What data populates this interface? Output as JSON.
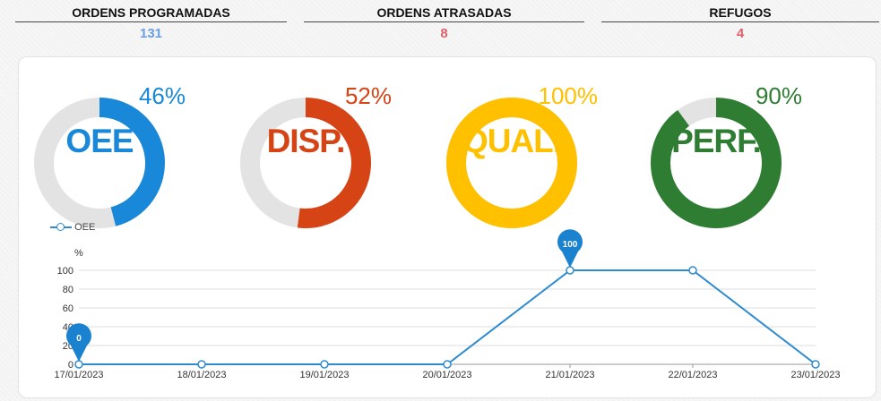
{
  "kpis": [
    {
      "label": "ORDENS PROGRAMADAS",
      "value": "131",
      "color": "#6a9fe0"
    },
    {
      "label": "ORDENS ATRASADAS",
      "value": "8",
      "color": "#e0606a"
    },
    {
      "label": "REFUGOS",
      "value": "4",
      "color": "#e0606a"
    }
  ],
  "gauges": [
    {
      "center": "OEE",
      "percent": "46%",
      "value": 46,
      "color": "#1a88d8"
    },
    {
      "center": "DISP.",
      "percent": "52%",
      "value": 52,
      "color": "#d64416"
    },
    {
      "center": "QUAL.",
      "percent": "100%",
      "value": 100,
      "color": "#ffc000"
    },
    {
      "center": "PERF.",
      "percent": "90%",
      "value": 90,
      "color": "#2e7d32"
    }
  ],
  "chart_data": {
    "type": "line",
    "title": "",
    "xlabel": "",
    "ylabel": "%",
    "ylim": [
      0,
      100
    ],
    "yticks": [
      0,
      20,
      40,
      60,
      80,
      100
    ],
    "categories": [
      "17/01/2023",
      "18/01/2023",
      "19/01/2023",
      "20/01/2023",
      "21/01/2023",
      "22/01/2023",
      "23/01/2023"
    ],
    "series": [
      {
        "name": "OEE",
        "values": [
          0,
          0,
          0,
          0,
          100,
          100,
          0
        ],
        "color": "#2e8bd0"
      }
    ],
    "markers": [
      {
        "index": 0,
        "label": "0"
      },
      {
        "index": 4,
        "label": "100"
      }
    ],
    "legend": "top-left",
    "grid": true
  }
}
